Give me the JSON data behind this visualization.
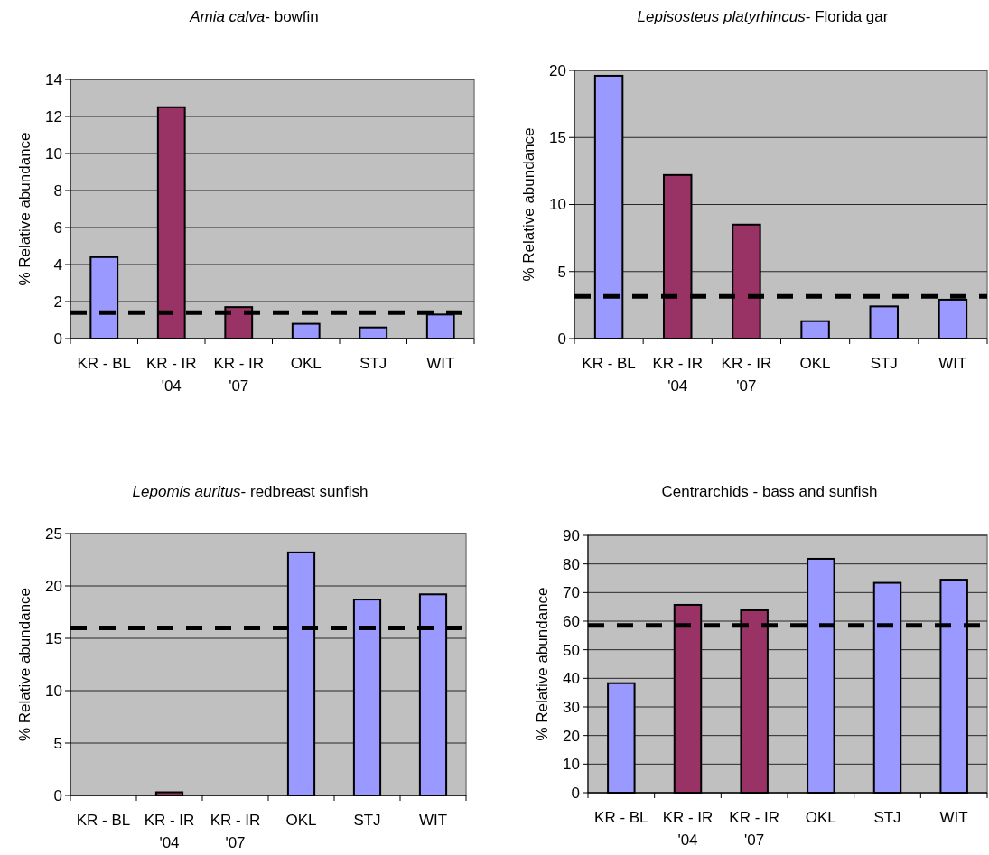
{
  "chart_data": [
    {
      "type": "bar",
      "title": "Amia calva- bowfin",
      "ylabel": "% Relative abundance",
      "categories": [
        "KR - BL",
        "KR - IR '04",
        "KR - IR '07",
        "OKL",
        "STJ",
        "WIT"
      ],
      "values": [
        4.4,
        12.5,
        1.7,
        0.8,
        0.6,
        1.3
      ],
      "colors": [
        "#9999ff",
        "#993366",
        "#993366",
        "#9999ff",
        "#9999ff",
        "#9999ff"
      ],
      "ylim": [
        0,
        14
      ],
      "yticks": [
        0,
        2,
        4,
        6,
        8,
        10,
        12,
        14
      ],
      "grid": "y",
      "ref_lines": [
        {
          "axis": "y",
          "value": 1.4,
          "color": "#000000",
          "line_style": "dashed"
        }
      ]
    },
    {
      "type": "bar",
      "title": "Lepisosteus platyrhincus- Florida gar",
      "ylabel": "% Relative abundance",
      "categories": [
        "KR - BL",
        "KR - IR '04",
        "KR - IR '07",
        "OKL",
        "STJ",
        "WIT"
      ],
      "values": [
        19.6,
        12.2,
        8.5,
        1.3,
        2.4,
        2.9
      ],
      "colors": [
        "#9999ff",
        "#993366",
        "#993366",
        "#9999ff",
        "#9999ff",
        "#9999ff"
      ],
      "ylim": [
        0,
        20
      ],
      "yticks": [
        0,
        5,
        10,
        15,
        20
      ],
      "grid": "y",
      "ref_lines": [
        {
          "axis": "y",
          "value": 3.15,
          "color": "#000000",
          "line_style": "dashed"
        }
      ]
    },
    {
      "type": "bar",
      "title": "Lepomis auritus- redbreast sunfish",
      "ylabel": "% Relative abundance",
      "categories": [
        "KR - BL",
        "KR - IR '04",
        "KR - IR '07",
        "OKL",
        "STJ",
        "WIT"
      ],
      "values": [
        0,
        0.3,
        0,
        23.2,
        18.7,
        19.2
      ],
      "colors": [
        "#9999ff",
        "#993366",
        "#993366",
        "#9999ff",
        "#9999ff",
        "#9999ff"
      ],
      "ylim": [
        0,
        25
      ],
      "yticks": [
        0,
        5,
        10,
        15,
        20,
        25
      ],
      "grid": "y",
      "ref_lines": [
        {
          "axis": "y",
          "value": 16,
          "color": "#000000",
          "line_style": "dashed"
        }
      ]
    },
    {
      "type": "bar",
      "title": "Centrarchids - bass and sunfish",
      "ylabel": "% Relative abundance",
      "categories": [
        "KR - BL",
        "KR - IR '04",
        "KR - IR '07",
        "OKL",
        "STJ",
        "WIT"
      ],
      "values": [
        38.3,
        65.7,
        63.8,
        81.8,
        73.4,
        74.5
      ],
      "colors": [
        "#9999ff",
        "#993366",
        "#993366",
        "#9999ff",
        "#9999ff",
        "#9999ff"
      ],
      "ylim": [
        0,
        90
      ],
      "yticks": [
        0,
        10,
        20,
        30,
        40,
        50,
        60,
        70,
        80,
        90
      ],
      "grid": "y",
      "ref_lines": [
        {
          "axis": "y",
          "value": 58.5,
          "color": "#000000",
          "line_style": "dashed"
        }
      ]
    }
  ]
}
